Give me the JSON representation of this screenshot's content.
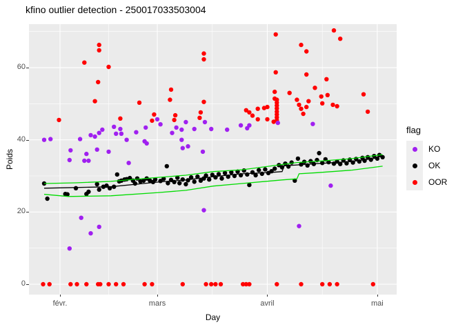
{
  "title": "kfino outlier detection - 250017033503004",
  "chart_data": {
    "type": "scatter",
    "title": "kfino outlier detection - 250017033503004",
    "xlabel": "Day",
    "ylabel": "Poids",
    "x_unit": "months (0 = févr., 3 = mai)",
    "xlim": [
      -0.29,
      3.18
    ],
    "ylim": [
      -2.9,
      72
    ],
    "x_ticks": [
      {
        "label": "févr.",
        "pos": 0
      },
      {
        "label": "mars",
        "pos": 0.92
      },
      {
        "label": "avril",
        "pos": 1.96
      },
      {
        "label": "mai",
        "pos": 3.0
      }
    ],
    "y_ticks": [
      {
        "label": "0",
        "value": 0
      },
      {
        "label": "20",
        "value": 20
      },
      {
        "label": "40",
        "value": 40
      },
      {
        "label": "60",
        "value": 60
      }
    ],
    "grid": {
      "major_y": [
        0,
        20,
        40,
        60
      ],
      "minor_y": [
        10,
        30,
        50,
        70
      ],
      "major_x": [
        0,
        0.92,
        1.96,
        3.0
      ],
      "minor_x": [
        0.46,
        1.44,
        2.48
      ]
    },
    "legend": {
      "title": "flag",
      "position": "right",
      "items": [
        {
          "label": "KO",
          "color": "#A020F0"
        },
        {
          "label": "OK",
          "color": "#000000"
        },
        {
          "label": "OOR",
          "color": "#FF0000"
        }
      ]
    },
    "colors": {
      "panel_bg": "#EBEBEB",
      "grid": "#FFFFFF",
      "bound_line": "#00DC00",
      "prediction_line": "#000000"
    },
    "series": [
      {
        "name": "OOR",
        "color": "#FF0000",
        "points": [
          [
            0.37,
            66.3
          ],
          [
            0.37,
            64.8
          ],
          [
            0.23,
            61.4
          ],
          [
            0.46,
            60.2
          ],
          [
            0.36,
            56.0
          ],
          [
            0.33,
            50.7
          ],
          [
            0.75,
            50.3
          ],
          [
            -0.01,
            45.5
          ],
          [
            0.57,
            45.9
          ],
          [
            0.87,
            45.3
          ],
          [
            0.89,
            47.0
          ],
          [
            1.04,
            51.1
          ],
          [
            1.05,
            53.9
          ],
          [
            1.08,
            45.5
          ],
          [
            1.09,
            46.8
          ],
          [
            1.32,
            46.1
          ],
          [
            1.33,
            47.6
          ],
          [
            1.36,
            63.9
          ],
          [
            1.36,
            62.3
          ],
          [
            1.36,
            50.5
          ],
          [
            1.76,
            48.2
          ],
          [
            1.79,
            47.6
          ],
          [
            1.82,
            46.7
          ],
          [
            1.87,
            48.6
          ],
          [
            1.87,
            45.7
          ],
          [
            1.93,
            48.8
          ],
          [
            1.96,
            49.1
          ],
          [
            1.96,
            45.7
          ],
          [
            2.02,
            45.0
          ],
          [
            2.03,
            51.4
          ],
          [
            2.03,
            53.3
          ],
          [
            2.04,
            58.7
          ],
          [
            2.04,
            69.2
          ],
          [
            2.05,
            51.1
          ],
          [
            2.05,
            50.3
          ],
          [
            2.05,
            49.5
          ],
          [
            2.05,
            48.7
          ],
          [
            2.05,
            47.8
          ],
          [
            2.05,
            47.0
          ],
          [
            2.05,
            46.2
          ],
          [
            2.05,
            45.4
          ],
          [
            2.17,
            53.0
          ],
          [
            2.24,
            51.1
          ],
          [
            2.26,
            49.7
          ],
          [
            2.28,
            48.6
          ],
          [
            2.3,
            47.2
          ],
          [
            2.33,
            49.1
          ],
          [
            2.35,
            50.7
          ],
          [
            2.41,
            54.4
          ],
          [
            2.47,
            52.0
          ],
          [
            2.48,
            50.1
          ],
          [
            2.53,
            52.4
          ],
          [
            2.58,
            49.7
          ],
          [
            2.62,
            49.3
          ],
          [
            2.87,
            52.6
          ],
          [
            2.91,
            47.8
          ],
          [
            2.28,
            66.3
          ],
          [
            2.33,
            64.5
          ],
          [
            2.33,
            58.1
          ],
          [
            2.52,
            56.8
          ],
          [
            2.59,
            70.3
          ],
          [
            2.65,
            68.0
          ],
          [
            -0.16,
            0
          ],
          [
            -0.1,
            0
          ],
          [
            0.1,
            0
          ],
          [
            0.16,
            0
          ],
          [
            0.25,
            0
          ],
          [
            0.36,
            0
          ],
          [
            0.38,
            0
          ],
          [
            0.46,
            0
          ],
          [
            0.53,
            0
          ],
          [
            0.6,
            0
          ],
          [
            0.8,
            0
          ],
          [
            0.87,
            0
          ],
          [
            1.16,
            0
          ],
          [
            1.38,
            0
          ],
          [
            1.43,
            0
          ],
          [
            1.47,
            0
          ],
          [
            1.52,
            0
          ],
          [
            1.73,
            0
          ],
          [
            1.76,
            0
          ],
          [
            1.79,
            0
          ],
          [
            2.05,
            0
          ],
          [
            2.28,
            0
          ],
          [
            2.48,
            0
          ],
          [
            2.55,
            0
          ],
          [
            2.62,
            0
          ],
          [
            2.96,
            0
          ]
        ]
      },
      {
        "name": "KO",
        "color": "#A020F0",
        "points": [
          [
            -0.15,
            40.0
          ],
          [
            -0.09,
            40.2
          ],
          [
            0.19,
            40.2
          ],
          [
            0.29,
            41.3
          ],
          [
            0.33,
            40.9
          ],
          [
            0.37,
            41.9
          ],
          [
            0.4,
            42.8
          ],
          [
            0.51,
            43.6
          ],
          [
            0.53,
            41.7
          ],
          [
            0.57,
            43.0
          ],
          [
            0.58,
            41.7
          ],
          [
            0.63,
            40.0
          ],
          [
            0.1,
            37.1
          ],
          [
            0.25,
            36.1
          ],
          [
            0.35,
            37.3
          ],
          [
            0.46,
            36.7
          ],
          [
            0.72,
            42.1
          ],
          [
            0.81,
            43.4
          ],
          [
            0.8,
            39.6
          ],
          [
            0.82,
            39.0
          ],
          [
            0.92,
            45.7
          ],
          [
            0.95,
            44.3
          ],
          [
            1.06,
            41.9
          ],
          [
            1.1,
            43.4
          ],
          [
            1.15,
            42.8
          ],
          [
            1.15,
            40.0
          ],
          [
            1.16,
            37.7
          ],
          [
            1.19,
            44.9
          ],
          [
            1.21,
            38.2
          ],
          [
            1.27,
            43.0
          ],
          [
            1.35,
            36.7
          ],
          [
            1.37,
            44.9
          ],
          [
            1.43,
            43.0
          ],
          [
            1.58,
            42.8
          ],
          [
            1.71,
            44.0
          ],
          [
            1.77,
            43.2
          ],
          [
            1.79,
            44.0
          ],
          [
            2.06,
            44.7
          ],
          [
            2.39,
            44.4
          ],
          [
            0.09,
            34.4
          ],
          [
            0.23,
            34.2
          ],
          [
            0.27,
            34.2
          ],
          [
            0.65,
            33.6
          ],
          [
            0.2,
            18.4
          ],
          [
            0.29,
            14.1
          ],
          [
            0.37,
            15.9
          ],
          [
            0.09,
            9.9
          ],
          [
            1.36,
            20.5
          ],
          [
            2.26,
            16.1
          ],
          [
            2.56,
            27.3
          ]
        ]
      },
      {
        "name": "OK",
        "color": "#000000",
        "points": [
          [
            -0.15,
            27.9
          ],
          [
            -0.12,
            23.7
          ],
          [
            0.05,
            25.0
          ],
          [
            0.07,
            24.9
          ],
          [
            0.15,
            26.6
          ],
          [
            0.25,
            25.0
          ],
          [
            0.27,
            25.6
          ],
          [
            0.35,
            27.7
          ],
          [
            0.37,
            26.2
          ],
          [
            0.41,
            27.0
          ],
          [
            0.44,
            27.3
          ],
          [
            0.47,
            26.6
          ],
          [
            0.51,
            27.0
          ],
          [
            0.54,
            30.4
          ],
          [
            0.56,
            28.5
          ],
          [
            0.58,
            28.7
          ],
          [
            0.61,
            29.0
          ],
          [
            0.63,
            29.1
          ],
          [
            0.66,
            29.4
          ],
          [
            0.69,
            28.7
          ],
          [
            0.71,
            27.9
          ],
          [
            0.73,
            29.3
          ],
          [
            0.76,
            28.5
          ],
          [
            0.79,
            28.7
          ],
          [
            0.82,
            29.3
          ],
          [
            0.85,
            28.7
          ],
          [
            0.88,
            28.3
          ],
          [
            0.9,
            29.0
          ],
          [
            0.95,
            28.6
          ],
          [
            0.98,
            29.2
          ],
          [
            1.01,
            32.7
          ],
          [
            1.02,
            28.0
          ],
          [
            1.05,
            28.9
          ],
          [
            1.08,
            28.3
          ],
          [
            1.11,
            29.5
          ],
          [
            1.13,
            28.0
          ],
          [
            1.16,
            29.0
          ],
          [
            1.19,
            27.7
          ],
          [
            1.21,
            28.8
          ],
          [
            1.24,
            29.6
          ],
          [
            1.27,
            28.4
          ],
          [
            1.3,
            29.8
          ],
          [
            1.33,
            28.7
          ],
          [
            1.36,
            29.3
          ],
          [
            1.38,
            30.1
          ],
          [
            1.41,
            29.0
          ],
          [
            1.44,
            30.3
          ],
          [
            1.47,
            29.6
          ],
          [
            1.5,
            30.5
          ],
          [
            1.53,
            29.3
          ],
          [
            1.56,
            30.8
          ],
          [
            1.59,
            29.8
          ],
          [
            1.62,
            31.0
          ],
          [
            1.65,
            30.0
          ],
          [
            1.68,
            31.2
          ],
          [
            1.71,
            30.2
          ],
          [
            1.74,
            31.5
          ],
          [
            1.77,
            30.4
          ],
          [
            1.79,
            27.5
          ],
          [
            1.82,
            31.0
          ],
          [
            1.85,
            30.2
          ],
          [
            1.88,
            31.6
          ],
          [
            1.91,
            30.6
          ],
          [
            1.94,
            31.8
          ],
          [
            1.97,
            30.8
          ],
          [
            2.0,
            31.3
          ],
          [
            2.03,
            32.0
          ],
          [
            2.07,
            33.0
          ],
          [
            2.1,
            32.4
          ],
          [
            2.13,
            33.4
          ],
          [
            2.16,
            32.6
          ],
          [
            2.19,
            33.7
          ],
          [
            2.22,
            28.7
          ],
          [
            2.25,
            34.8
          ],
          [
            2.28,
            33.2
          ],
          [
            2.31,
            33.9
          ],
          [
            2.34,
            32.9
          ],
          [
            2.37,
            34.1
          ],
          [
            2.4,
            33.3
          ],
          [
            2.43,
            34.4
          ],
          [
            2.45,
            36.3
          ],
          [
            2.48,
            33.6
          ],
          [
            2.51,
            34.6
          ],
          [
            2.54,
            33.8
          ],
          [
            2.59,
            33.4
          ],
          [
            2.62,
            34.0
          ],
          [
            2.65,
            33.3
          ],
          [
            2.68,
            34.3
          ],
          [
            2.71,
            33.5
          ],
          [
            2.74,
            34.5
          ],
          [
            2.77,
            33.7
          ],
          [
            2.8,
            34.7
          ],
          [
            2.83,
            34.0
          ],
          [
            2.86,
            35.0
          ],
          [
            2.88,
            34.2
          ],
          [
            2.91,
            35.2
          ],
          [
            2.94,
            34.5
          ],
          [
            2.97,
            35.5
          ],
          [
            3.0,
            34.8
          ],
          [
            3.02,
            35.8
          ],
          [
            3.05,
            35.2
          ]
        ]
      }
    ],
    "lines": [
      {
        "name": "prediction-line",
        "color": "#000000",
        "points": [
          [
            -0.15,
            26.6
          ],
          [
            0.15,
            26.8
          ],
          [
            0.48,
            27.0
          ],
          [
            0.93,
            28.3
          ],
          [
            1.19,
            28.9
          ],
          [
            1.45,
            29.8
          ],
          [
            1.72,
            30.6
          ],
          [
            2.01,
            31.0
          ],
          [
            2.1,
            31.2
          ],
          [
            2.12,
            32.8
          ],
          [
            2.43,
            33.4
          ],
          [
            2.76,
            34.0
          ],
          [
            3.01,
            35.0
          ]
        ]
      },
      {
        "name": "upper-bound-line",
        "color": "#00DC00",
        "points": [
          [
            -0.15,
            27.9
          ],
          [
            0.15,
            28.1
          ],
          [
            0.48,
            28.5
          ],
          [
            0.93,
            29.6
          ],
          [
            1.19,
            30.2
          ],
          [
            1.45,
            31.2
          ],
          [
            1.72,
            31.7
          ],
          [
            1.98,
            32.7
          ],
          [
            2.24,
            33.7
          ],
          [
            2.5,
            34.2
          ],
          [
            2.76,
            34.8
          ],
          [
            3.05,
            35.9
          ]
        ]
      },
      {
        "name": "lower-bound-line",
        "color": "#00DC00",
        "points": [
          [
            -0.15,
            24.9
          ],
          [
            0.08,
            24.3
          ],
          [
            0.48,
            24.5
          ],
          [
            0.93,
            25.4
          ],
          [
            1.19,
            26.0
          ],
          [
            1.45,
            27.2
          ],
          [
            1.72,
            27.9
          ],
          [
            2.1,
            28.9
          ],
          [
            2.24,
            29.2
          ],
          [
            2.26,
            30.6
          ],
          [
            2.43,
            30.9
          ],
          [
            2.76,
            31.6
          ],
          [
            3.05,
            32.7
          ]
        ]
      }
    ]
  }
}
